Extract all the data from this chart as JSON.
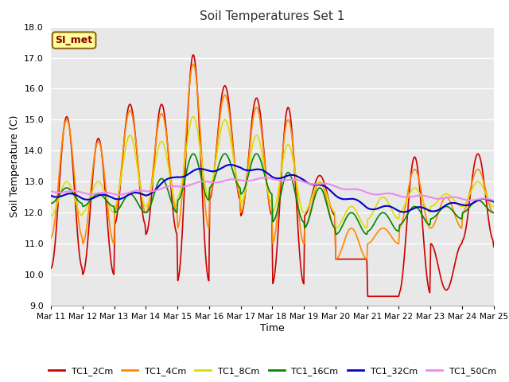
{
  "title": "Soil Temperatures Set 1",
  "xlabel": "Time",
  "ylabel": "Soil Temperature (C)",
  "ylim": [
    9.0,
    18.0
  ],
  "yticks": [
    9.0,
    10.0,
    11.0,
    12.0,
    13.0,
    14.0,
    15.0,
    16.0,
    17.0,
    18.0
  ],
  "xtick_labels": [
    "Mar 11",
    "Mar 12",
    "Mar 13",
    "Mar 14",
    "Mar 15",
    "Mar 16",
    "Mar 17",
    "Mar 18",
    "Mar 19",
    "Mar 20",
    "Mar 21",
    "Mar 22",
    "Mar 23",
    "Mar 24",
    "Mar 25"
  ],
  "fig_bg_color": "#ffffff",
  "plot_bg_color": "#e8e8e8",
  "grid_color": "#ffffff",
  "annotation_text": "SI_met",
  "annotation_bg": "#ffff99",
  "annotation_border": "#8b6914",
  "series": {
    "TC1_2Cm": {
      "color": "#cc0000",
      "lw": 1.2
    },
    "TC1_4Cm": {
      "color": "#ff8800",
      "lw": 1.2
    },
    "TC1_8Cm": {
      "color": "#dddd00",
      "lw": 1.2
    },
    "TC1_16Cm": {
      "color": "#008800",
      "lw": 1.2
    },
    "TC1_32Cm": {
      "color": "#0000cc",
      "lw": 1.5
    },
    "TC1_50Cm": {
      "color": "#ee88ee",
      "lw": 1.5
    }
  },
  "peaks_2cm": [
    15.1,
    14.4,
    15.5,
    15.5,
    17.1,
    16.1,
    15.7,
    15.4,
    13.2,
    10.5,
    9.3,
    13.8,
    9.5,
    13.9,
    13.8
  ],
  "troughs_2cm": [
    10.2,
    10.0,
    11.6,
    11.3,
    9.8,
    12.4,
    11.9,
    9.7,
    11.9,
    10.5,
    9.3,
    9.4,
    11.0,
    11.1,
    10.9
  ],
  "peaks_4cm": [
    15.0,
    14.3,
    15.3,
    15.2,
    16.8,
    15.8,
    15.4,
    15.0,
    13.0,
    11.5,
    11.5,
    13.4,
    12.5,
    13.4,
    13.4
  ],
  "troughs_4cm": [
    11.2,
    11.0,
    12.0,
    12.0,
    11.5,
    12.5,
    12.0,
    11.0,
    11.5,
    10.5,
    11.0,
    11.5,
    11.5,
    12.0,
    12.0
  ],
  "peaks_8cm": [
    13.0,
    13.0,
    14.5,
    14.3,
    15.1,
    15.0,
    14.5,
    14.2,
    13.0,
    12.2,
    12.5,
    12.8,
    12.6,
    13.0,
    13.0
  ],
  "troughs_8cm": [
    11.9,
    12.0,
    12.2,
    12.2,
    12.5,
    12.8,
    12.3,
    12.0,
    12.0,
    11.5,
    11.8,
    12.0,
    12.2,
    12.2,
    12.2
  ],
  "peaks_16cm": [
    12.8,
    12.6,
    12.6,
    13.1,
    13.9,
    13.9,
    13.9,
    13.3,
    12.8,
    12.0,
    12.0,
    12.2,
    12.2,
    12.4,
    12.4
  ],
  "troughs_16cm": [
    12.3,
    12.2,
    12.0,
    12.0,
    12.4,
    12.8,
    12.6,
    11.7,
    11.5,
    11.3,
    11.4,
    11.6,
    11.8,
    12.0,
    12.0
  ],
  "ctrl_32cm_x": [
    0,
    1,
    2,
    3,
    4,
    5,
    6,
    7,
    8,
    9,
    10,
    11,
    12,
    13,
    14
  ],
  "ctrl_32cm_y": [
    12.6,
    12.5,
    12.5,
    12.6,
    13.2,
    13.4,
    13.5,
    13.2,
    13.1,
    12.6,
    12.2,
    12.1,
    12.1,
    12.3,
    12.4
  ],
  "ctrl_50cm_x": [
    0,
    1,
    2,
    3,
    4,
    5,
    6,
    7,
    8,
    9,
    10,
    11,
    12,
    13,
    14
  ],
  "ctrl_50cm_y": [
    12.7,
    12.65,
    12.6,
    12.7,
    12.85,
    13.0,
    13.05,
    13.1,
    13.0,
    12.85,
    12.65,
    12.55,
    12.5,
    12.45,
    12.4
  ],
  "n_points": 500
}
